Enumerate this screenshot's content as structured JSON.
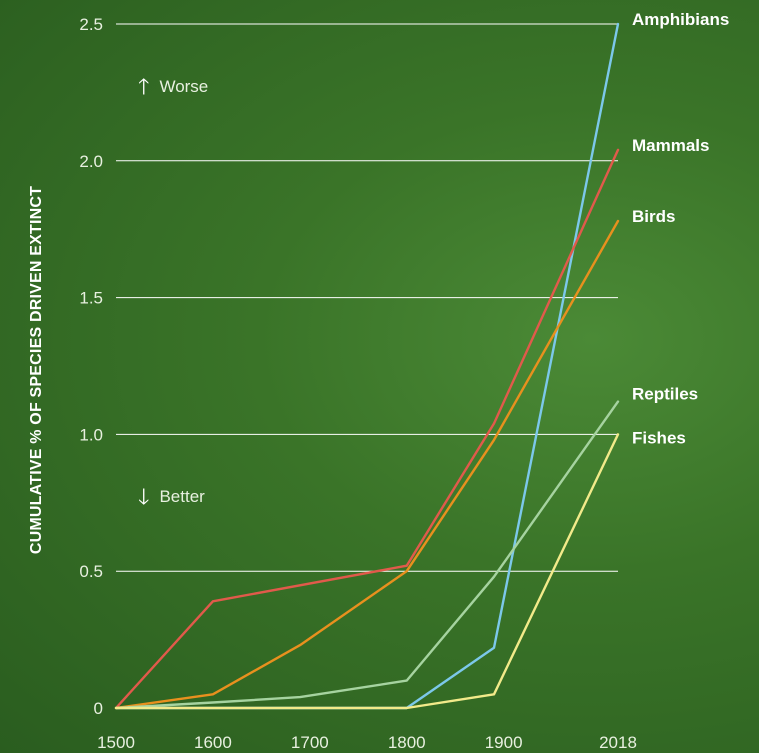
{
  "chart_data": {
    "type": "line",
    "ylabel": "CUMULATIVE % OF SPECIES DRIVEN EXTINCT",
    "xlabel": "",
    "x": [
      1500,
      1600,
      1690,
      1800,
      1890,
      2018
    ],
    "x_ticks": [
      "1500",
      "1600",
      "1700",
      "1800",
      "1900",
      "2018"
    ],
    "y_ticks": [
      "0",
      "0.5",
      "1.0",
      "1.5",
      "2.0",
      "2.5"
    ],
    "xlim": [
      1500,
      2018
    ],
    "ylim": [
      0,
      2.5
    ],
    "grid": true,
    "annotations": {
      "worse": "Worse",
      "better": "Better"
    },
    "series": [
      {
        "name": "Amphibians",
        "color": "#7cc8ea",
        "points": [
          [
            1500,
            0
          ],
          [
            1800,
            0
          ],
          [
            1890,
            0.22
          ],
          [
            2018,
            2.5
          ]
        ]
      },
      {
        "name": "Mammals",
        "color": "#e15a4b",
        "points": [
          [
            1500,
            0
          ],
          [
            1600,
            0.39
          ],
          [
            1800,
            0.52
          ],
          [
            1890,
            1.04
          ],
          [
            2018,
            2.04
          ]
        ]
      },
      {
        "name": "Birds",
        "color": "#e8901e",
        "points": [
          [
            1500,
            0
          ],
          [
            1600,
            0.05
          ],
          [
            1690,
            0.23
          ],
          [
            1800,
            0.5
          ],
          [
            1890,
            0.98
          ],
          [
            2018,
            1.78
          ]
        ]
      },
      {
        "name": "Reptiles",
        "color": "#a6d3a0",
        "points": [
          [
            1500,
            0
          ],
          [
            1600,
            0.02
          ],
          [
            1690,
            0.04
          ],
          [
            1800,
            0.1
          ],
          [
            1890,
            0.48
          ],
          [
            2018,
            1.12
          ]
        ]
      },
      {
        "name": "Fishes",
        "color": "#f2ea8a",
        "points": [
          [
            1500,
            0
          ],
          [
            1800,
            0
          ],
          [
            1890,
            0.05
          ],
          [
            2018,
            1.0
          ]
        ]
      }
    ]
  }
}
